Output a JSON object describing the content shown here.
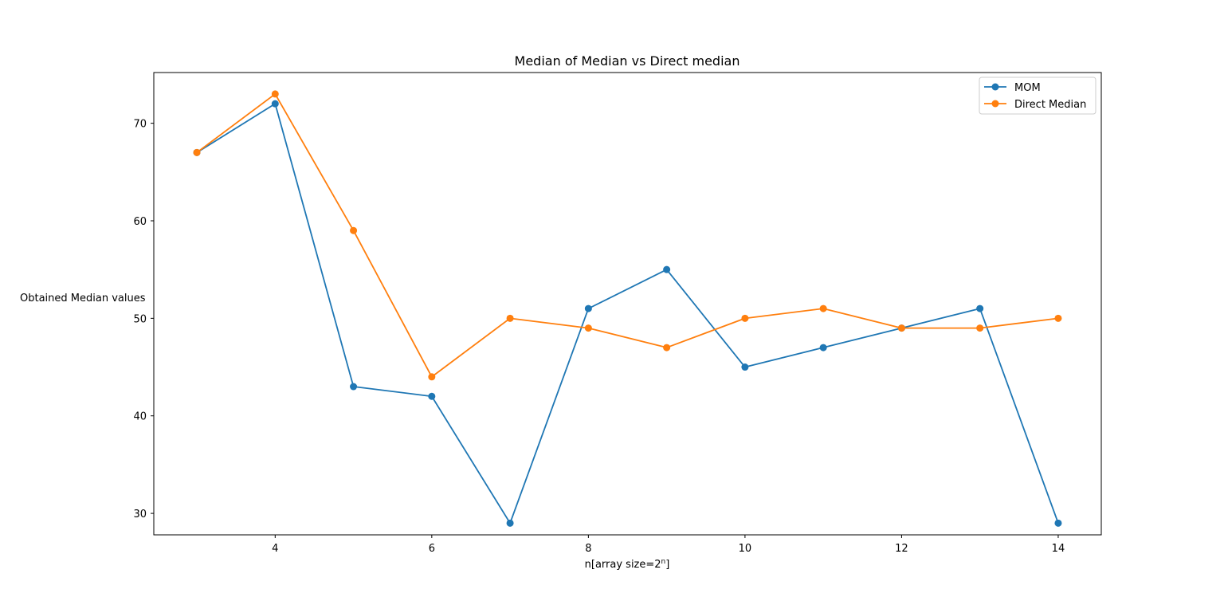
{
  "chart_data": {
    "type": "line",
    "title": "Median of Median vs Direct median",
    "xlabel": "n[array size=2",
    "xlabel_sup": "n",
    "xlabel_suffix": "]",
    "ylabel": "Obtained Median values",
    "xlim": [
      2.45,
      14.55
    ],
    "ylim": [
      27.8,
      75.2
    ],
    "xticks": [
      4,
      6,
      8,
      10,
      12,
      14
    ],
    "yticks": [
      30,
      40,
      50,
      60,
      70
    ],
    "x": [
      3,
      4,
      5,
      6,
      7,
      8,
      9,
      10,
      11,
      12,
      13,
      14
    ],
    "series": [
      {
        "name": "MOM",
        "color": "#1f77b4",
        "values": [
          67,
          72,
          43,
          42,
          29,
          51,
          55,
          45,
          47,
          49,
          51,
          29
        ]
      },
      {
        "name": "Direct Median",
        "color": "#ff7f0e",
        "values": [
          67,
          73,
          59,
          44,
          50,
          49,
          47,
          50,
          51,
          49,
          49,
          50
        ]
      }
    ],
    "legend_position": "top-right",
    "grid": false
  }
}
